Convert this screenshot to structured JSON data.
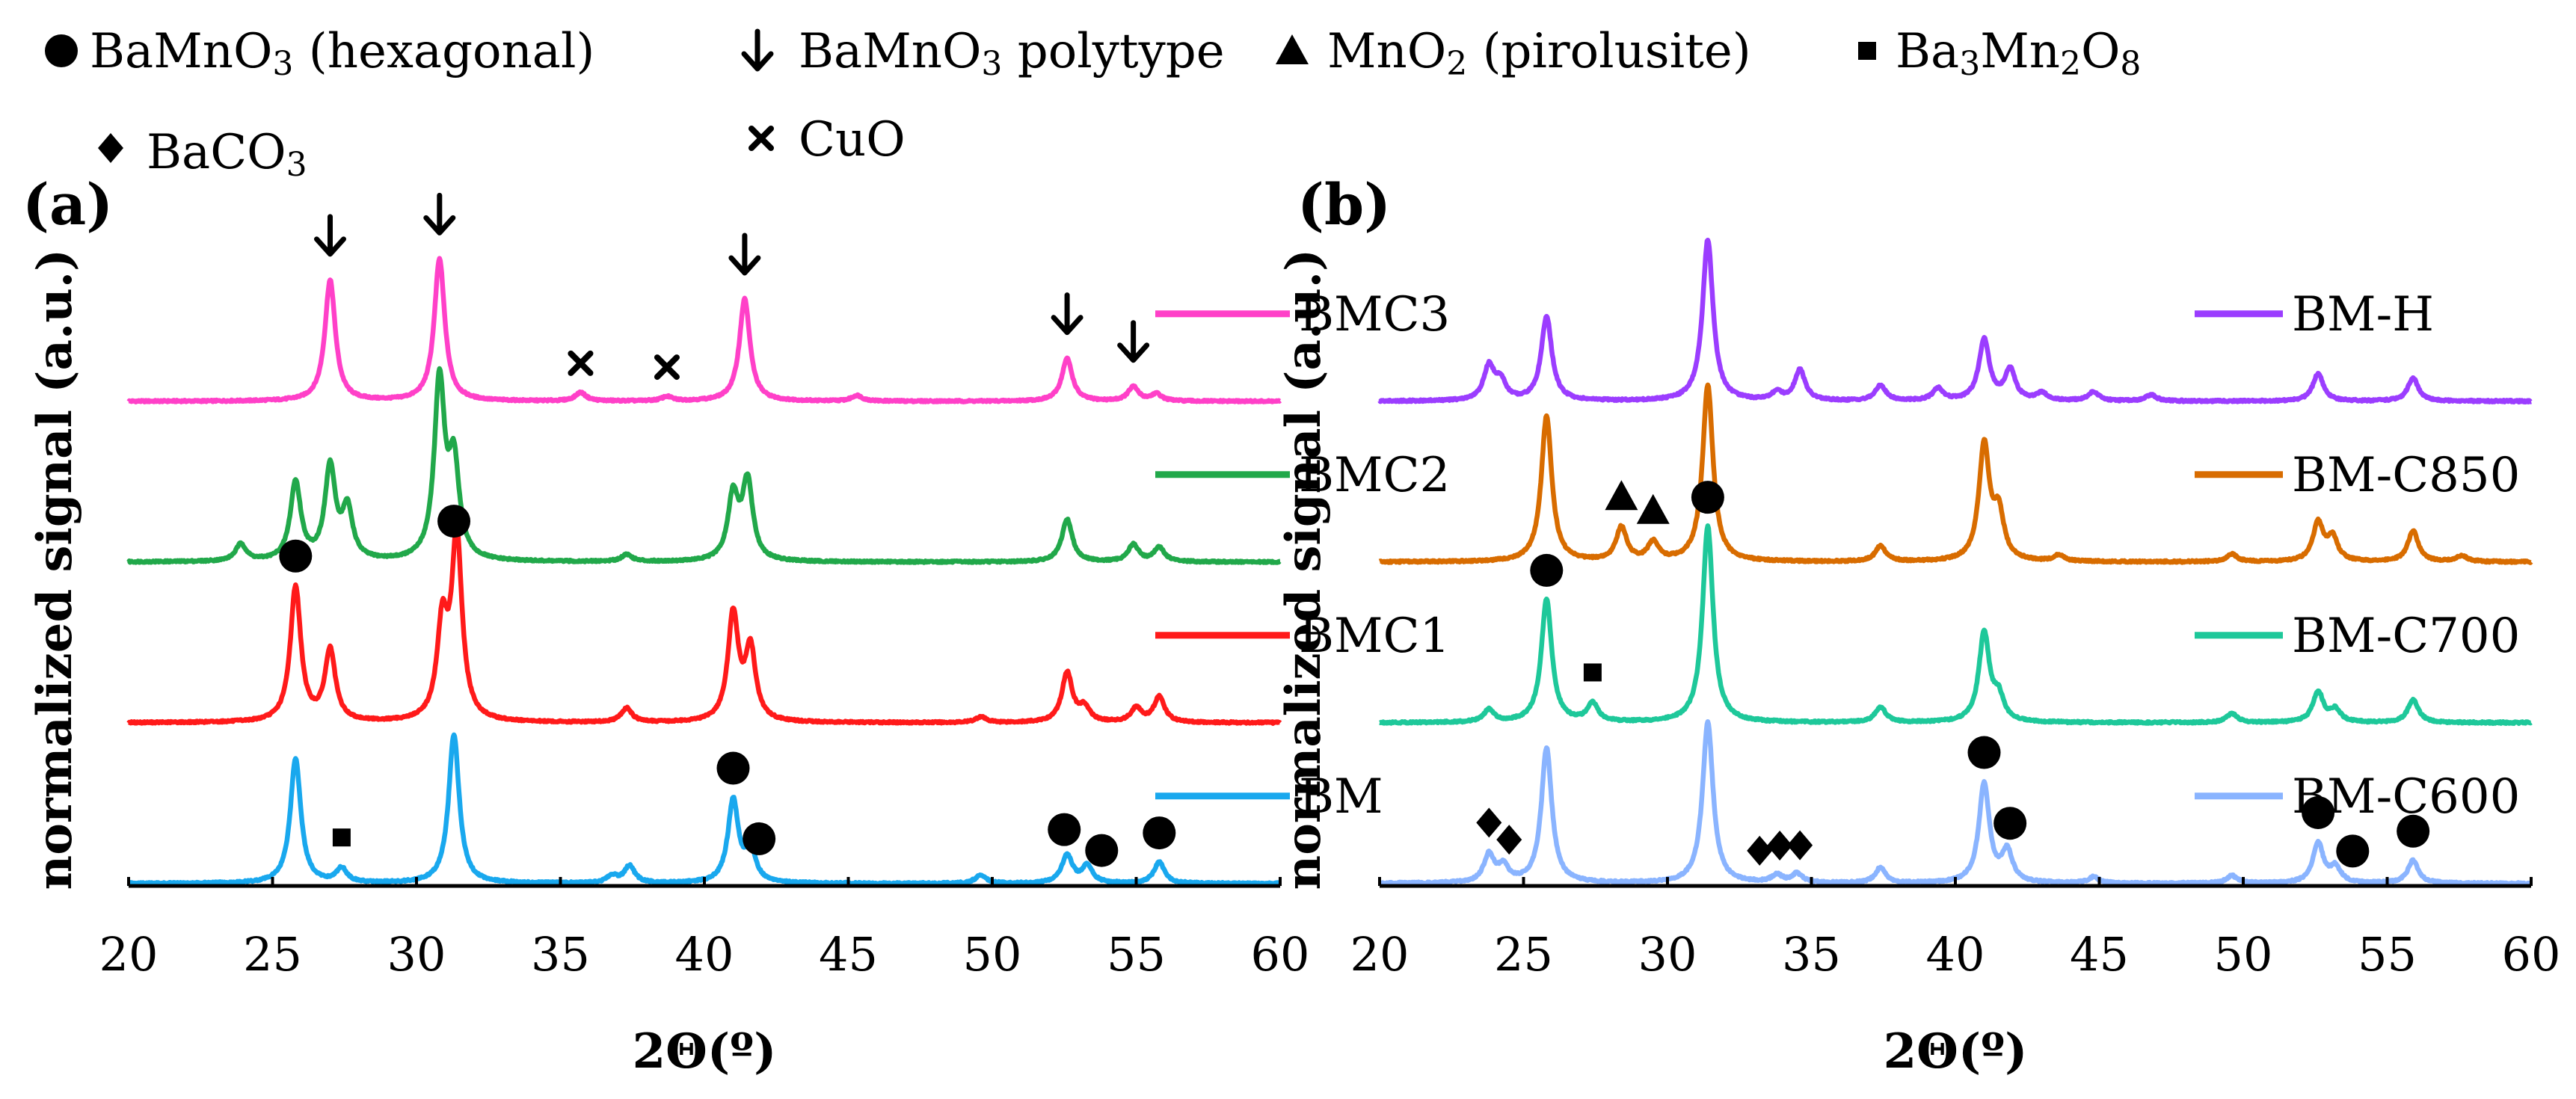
{
  "legend": {
    "entries": [
      {
        "symbol": "circle",
        "text": "BaMnO",
        "sub": "3",
        "after": " (hexagonal)"
      },
      {
        "symbol": "arrow",
        "text": "BaMnO",
        "sub": "3",
        "after": " polytype"
      },
      {
        "symbol": "triangle",
        "text": "MnO",
        "sub": "2",
        "after": " (pirolusite)"
      },
      {
        "symbol": "square",
        "text": "Ba",
        "sub": "3",
        "mid": "Mn",
        "sub2": "2",
        "mid2": "O",
        "sub3": "8"
      },
      {
        "symbol": "diamond",
        "text": "BaCO",
        "sub": "3"
      },
      {
        "symbol": "cross",
        "text": "CuO"
      }
    ]
  },
  "chart_data": [
    {
      "type": "line",
      "panel_label": "(a)",
      "xlabel": "2Θ(º)",
      "ylabel": "normalized signal (a.u.)",
      "xlim": [
        20,
        60
      ],
      "x_ticks": [
        "20",
        "25",
        "30",
        "35",
        "40",
        "45",
        "50",
        "55",
        "60"
      ],
      "series": [
        {
          "name": "BMC3",
          "color": "#ff40c8",
          "offset": 3.0,
          "peaks": [
            [
              27.0,
              0.85
            ],
            [
              30.8,
              1.0
            ],
            [
              35.7,
              0.06
            ],
            [
              38.7,
              0.03
            ],
            [
              41.4,
              0.72
            ],
            [
              45.3,
              0.04
            ],
            [
              52.6,
              0.3
            ],
            [
              54.9,
              0.1
            ],
            [
              55.7,
              0.05
            ]
          ]
        },
        {
          "name": "BMC2",
          "color": "#21a84a",
          "offset": 2.0,
          "peaks": [
            [
              23.9,
              0.12
            ],
            [
              25.8,
              0.55
            ],
            [
              27.0,
              0.65
            ],
            [
              27.6,
              0.35
            ],
            [
              30.8,
              1.25
            ],
            [
              31.3,
              0.65
            ],
            [
              37.3,
              0.05
            ],
            [
              41.0,
              0.45
            ],
            [
              41.5,
              0.55
            ],
            [
              52.6,
              0.3
            ],
            [
              54.9,
              0.12
            ],
            [
              55.8,
              0.1
            ]
          ]
        },
        {
          "name": "BMC1",
          "color": "#ff1a1a",
          "offset": 1.0,
          "peaks": [
            [
              25.8,
              0.95
            ],
            [
              27.0,
              0.5
            ],
            [
              30.9,
              0.65
            ],
            [
              31.4,
              1.28
            ],
            [
              37.3,
              0.1
            ],
            [
              41.0,
              0.75
            ],
            [
              41.6,
              0.5
            ],
            [
              49.6,
              0.04
            ],
            [
              52.6,
              0.35
            ],
            [
              53.2,
              0.1
            ],
            [
              55.0,
              0.1
            ],
            [
              55.8,
              0.18
            ]
          ]
        },
        {
          "name": "BM",
          "color": "#19a8ee",
          "offset": 0.0,
          "peaks": [
            [
              25.8,
              0.88
            ],
            [
              27.4,
              0.1
            ],
            [
              31.3,
              1.05
            ],
            [
              36.8,
              0.05
            ],
            [
              37.4,
              0.12
            ],
            [
              41.0,
              0.58
            ],
            [
              41.6,
              0.22
            ],
            [
              49.6,
              0.06
            ],
            [
              52.6,
              0.2
            ],
            [
              53.3,
              0.12
            ],
            [
              55.8,
              0.15
            ]
          ]
        }
      ],
      "annotations": [
        {
          "symbol": "arrow",
          "x": 27.0,
          "series": "BMC3"
        },
        {
          "symbol": "arrow",
          "x": 30.8,
          "series": "BMC3"
        },
        {
          "symbol": "arrow",
          "x": 41.4,
          "series": "BMC3"
        },
        {
          "symbol": "arrow",
          "x": 52.6,
          "series": "BMC3"
        },
        {
          "symbol": "arrow",
          "x": 54.9,
          "series": "BMC3"
        },
        {
          "symbol": "cross",
          "x": 35.7,
          "series": "BMC3"
        },
        {
          "symbol": "cross",
          "x": 38.7,
          "series": "BMC3"
        },
        {
          "symbol": "circle",
          "x": 25.8,
          "series": "BMC1"
        },
        {
          "symbol": "circle",
          "x": 31.3,
          "series": "BMC1"
        },
        {
          "symbol": "square",
          "x": 27.4,
          "series": "BM"
        },
        {
          "symbol": "circle",
          "x": 41.0,
          "series": "BM"
        },
        {
          "symbol": "circle",
          "x": 41.9,
          "series": "BM"
        },
        {
          "symbol": "circle",
          "x": 52.5,
          "series": "BM"
        },
        {
          "symbol": "circle",
          "x": 53.8,
          "series": "BM"
        },
        {
          "symbol": "circle",
          "x": 55.8,
          "series": "BM"
        }
      ]
    },
    {
      "type": "line",
      "panel_label": "(b)",
      "xlabel": "2Θ(º)",
      "ylabel": "normalized signal (a.u.)",
      "xlim": [
        20,
        60
      ],
      "x_ticks": [
        "20",
        "25",
        "30",
        "35",
        "40",
        "45",
        "50",
        "55",
        "60"
      ],
      "series": [
        {
          "name": "BM-H",
          "color": "#9b3dff",
          "offset": 3.0,
          "peaks": [
            [
              23.8,
              0.22
            ],
            [
              24.2,
              0.12
            ],
            [
              25.8,
              0.55
            ],
            [
              31.4,
              1.05
            ],
            [
              33.8,
              0.05
            ],
            [
              34.6,
              0.2
            ],
            [
              37.4,
              0.1
            ],
            [
              39.4,
              0.08
            ],
            [
              41.0,
              0.4
            ],
            [
              41.9,
              0.2
            ],
            [
              43.0,
              0.05
            ],
            [
              44.8,
              0.06
            ],
            [
              46.8,
              0.04
            ],
            [
              52.6,
              0.18
            ],
            [
              55.9,
              0.15
            ]
          ]
        },
        {
          "name": "BM-C850",
          "color": "#d86c00",
          "offset": 2.0,
          "peaks": [
            [
              25.8,
              0.95
            ],
            [
              28.4,
              0.22
            ],
            [
              29.5,
              0.12
            ],
            [
              31.4,
              1.15
            ],
            [
              37.4,
              0.1
            ],
            [
              41.0,
              0.75
            ],
            [
              41.5,
              0.3
            ],
            [
              43.6,
              0.04
            ],
            [
              49.6,
              0.05
            ],
            [
              52.6,
              0.25
            ],
            [
              53.1,
              0.15
            ],
            [
              55.9,
              0.2
            ],
            [
              57.6,
              0.04
            ]
          ]
        },
        {
          "name": "BM-C700",
          "color": "#1ec89a",
          "offset": 1.0,
          "peaks": [
            [
              23.8,
              0.08
            ],
            [
              25.8,
              0.8
            ],
            [
              27.4,
              0.12
            ],
            [
              31.4,
              1.28
            ],
            [
              37.4,
              0.1
            ],
            [
              41.0,
              0.58
            ],
            [
              41.5,
              0.15
            ],
            [
              49.6,
              0.06
            ],
            [
              52.6,
              0.2
            ],
            [
              53.2,
              0.08
            ],
            [
              55.9,
              0.15
            ]
          ]
        },
        {
          "name": "BM-C600",
          "color": "#8ab4ff",
          "offset": 0.0,
          "peaks": [
            [
              23.8,
              0.18
            ],
            [
              24.3,
              0.1
            ],
            [
              25.8,
              0.88
            ],
            [
              31.4,
              1.05
            ],
            [
              33.8,
              0.05
            ],
            [
              34.5,
              0.06
            ],
            [
              37.4,
              0.1
            ],
            [
              41.0,
              0.65
            ],
            [
              41.8,
              0.2
            ],
            [
              44.8,
              0.04
            ],
            [
              49.6,
              0.05
            ],
            [
              52.6,
              0.26
            ],
            [
              53.2,
              0.1
            ],
            [
              55.9,
              0.15
            ]
          ]
        }
      ],
      "annotations": [
        {
          "symbol": "triangle",
          "x": 28.4,
          "series": "BM-C850"
        },
        {
          "symbol": "triangle",
          "x": 29.5,
          "series": "BM-C850"
        },
        {
          "symbol": "square",
          "x": 27.4,
          "series": "BM-C700"
        },
        {
          "symbol": "circle",
          "x": 25.8,
          "series": "BM-C700"
        },
        {
          "symbol": "circle",
          "x": 31.4,
          "series": "BM-C700"
        },
        {
          "symbol": "diamond",
          "x": 23.8,
          "series": "BM-C600"
        },
        {
          "symbol": "diamond",
          "x": 24.5,
          "series": "BM-C600"
        },
        {
          "symbol": "diamond",
          "x": 33.2,
          "series": "BM-C600"
        },
        {
          "symbol": "diamond",
          "x": 33.9,
          "series": "BM-C600"
        },
        {
          "symbol": "diamond",
          "x": 34.6,
          "series": "BM-C600"
        },
        {
          "symbol": "circle",
          "x": 41.0,
          "series": "BM-C600"
        },
        {
          "symbol": "circle",
          "x": 41.9,
          "series": "BM-C600"
        },
        {
          "symbol": "circle",
          "x": 52.6,
          "series": "BM-C600"
        },
        {
          "symbol": "circle",
          "x": 53.8,
          "series": "BM-C600"
        },
        {
          "symbol": "circle",
          "x": 55.9,
          "series": "BM-C600"
        }
      ]
    }
  ]
}
